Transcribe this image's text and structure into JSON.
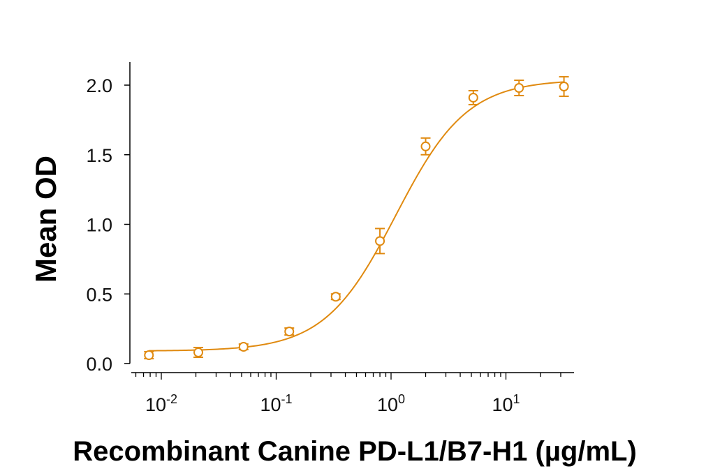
{
  "chart_data": {
    "type": "scatter",
    "x_scale": "log",
    "xlabel": "Recombinant Canine PD-L1/B7-H1 (µg/mL)",
    "ylabel": "Mean OD",
    "ylim": [
      0,
      2.0
    ],
    "xlim": [
      0.006,
      40
    ],
    "y_ticks": [
      "0.0",
      "0.5",
      "1.0",
      "1.5",
      "2.0"
    ],
    "x_ticks": [
      {
        "base": "10",
        "exp": "-2"
      },
      {
        "base": "10",
        "exp": "-1"
      },
      {
        "base": "10",
        "exp": "0"
      },
      {
        "base": "10",
        "exp": "1"
      }
    ],
    "color": "#E08A10",
    "series": [
      {
        "x": [
          0.0078,
          0.021,
          0.052,
          0.13,
          0.33,
          0.8,
          2.0,
          5.2,
          13,
          32
        ],
        "y": [
          0.06,
          0.08,
          0.12,
          0.23,
          0.48,
          0.88,
          1.56,
          1.91,
          1.98,
          1.99
        ],
        "err": [
          0.025,
          0.035,
          0.02,
          0.025,
          0.02,
          0.09,
          0.06,
          0.05,
          0.055,
          0.07
        ]
      }
    ],
    "fit": {
      "type": "4PL",
      "bottom": 0.09,
      "top": 2.04,
      "ec50": 1.1,
      "hill": 1.4
    },
    "grid": false,
    "legend": "none"
  }
}
